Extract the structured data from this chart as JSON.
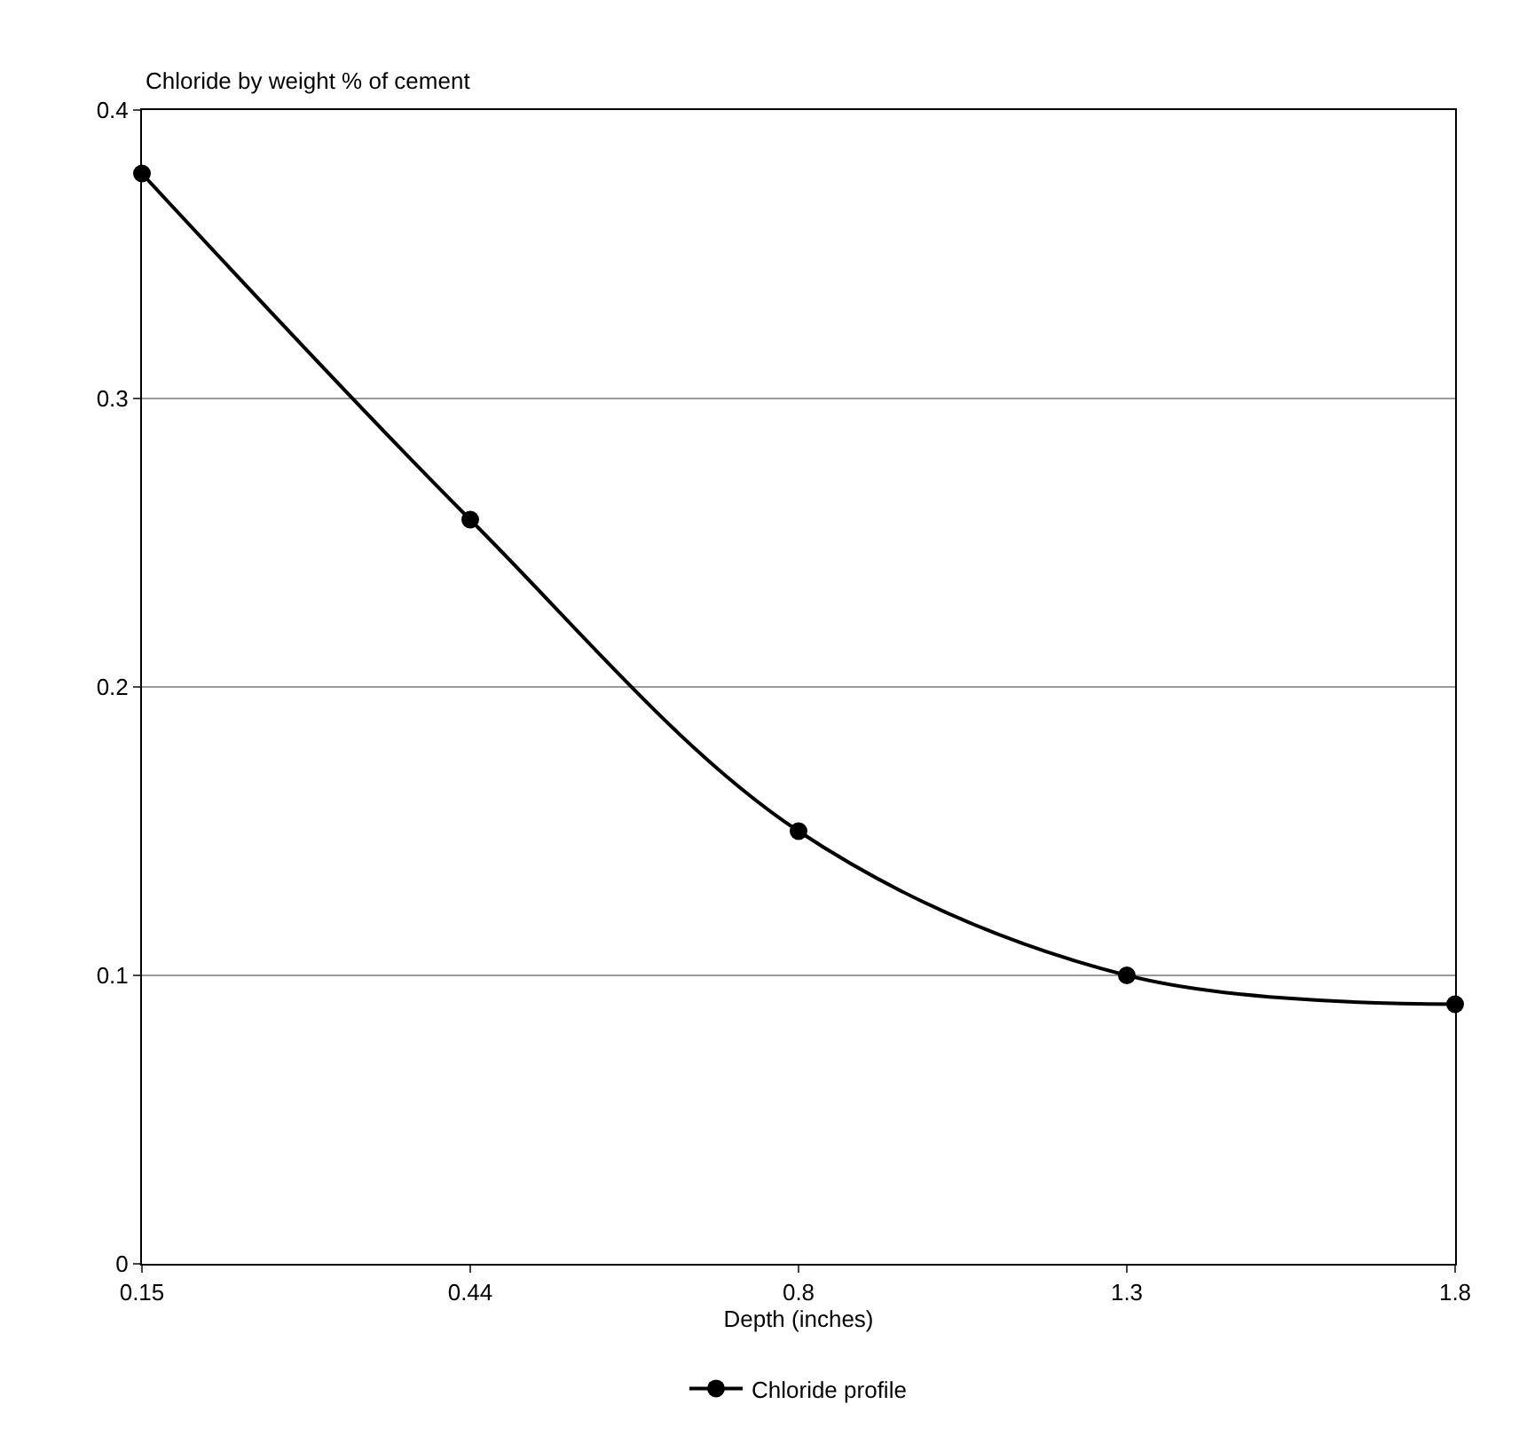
{
  "chart_data": {
    "type": "line",
    "ylabel": "Chloride by weight % of cement",
    "xlabel": "Depth (inches)",
    "categories": [
      "0.15",
      "0.44",
      "0.8",
      "1.3",
      "1.8"
    ],
    "series": [
      {
        "name": "Chloride profile",
        "color": "#000000",
        "values": [
          0.378,
          0.258,
          0.15,
          0.1,
          0.09
        ]
      }
    ],
    "ylim": [
      0,
      0.4
    ],
    "yticks": [
      0,
      0.1,
      0.2,
      0.3,
      0.4
    ],
    "grid": "y",
    "legend": "bottom",
    "marker": "circle",
    "line_style": "solid"
  }
}
